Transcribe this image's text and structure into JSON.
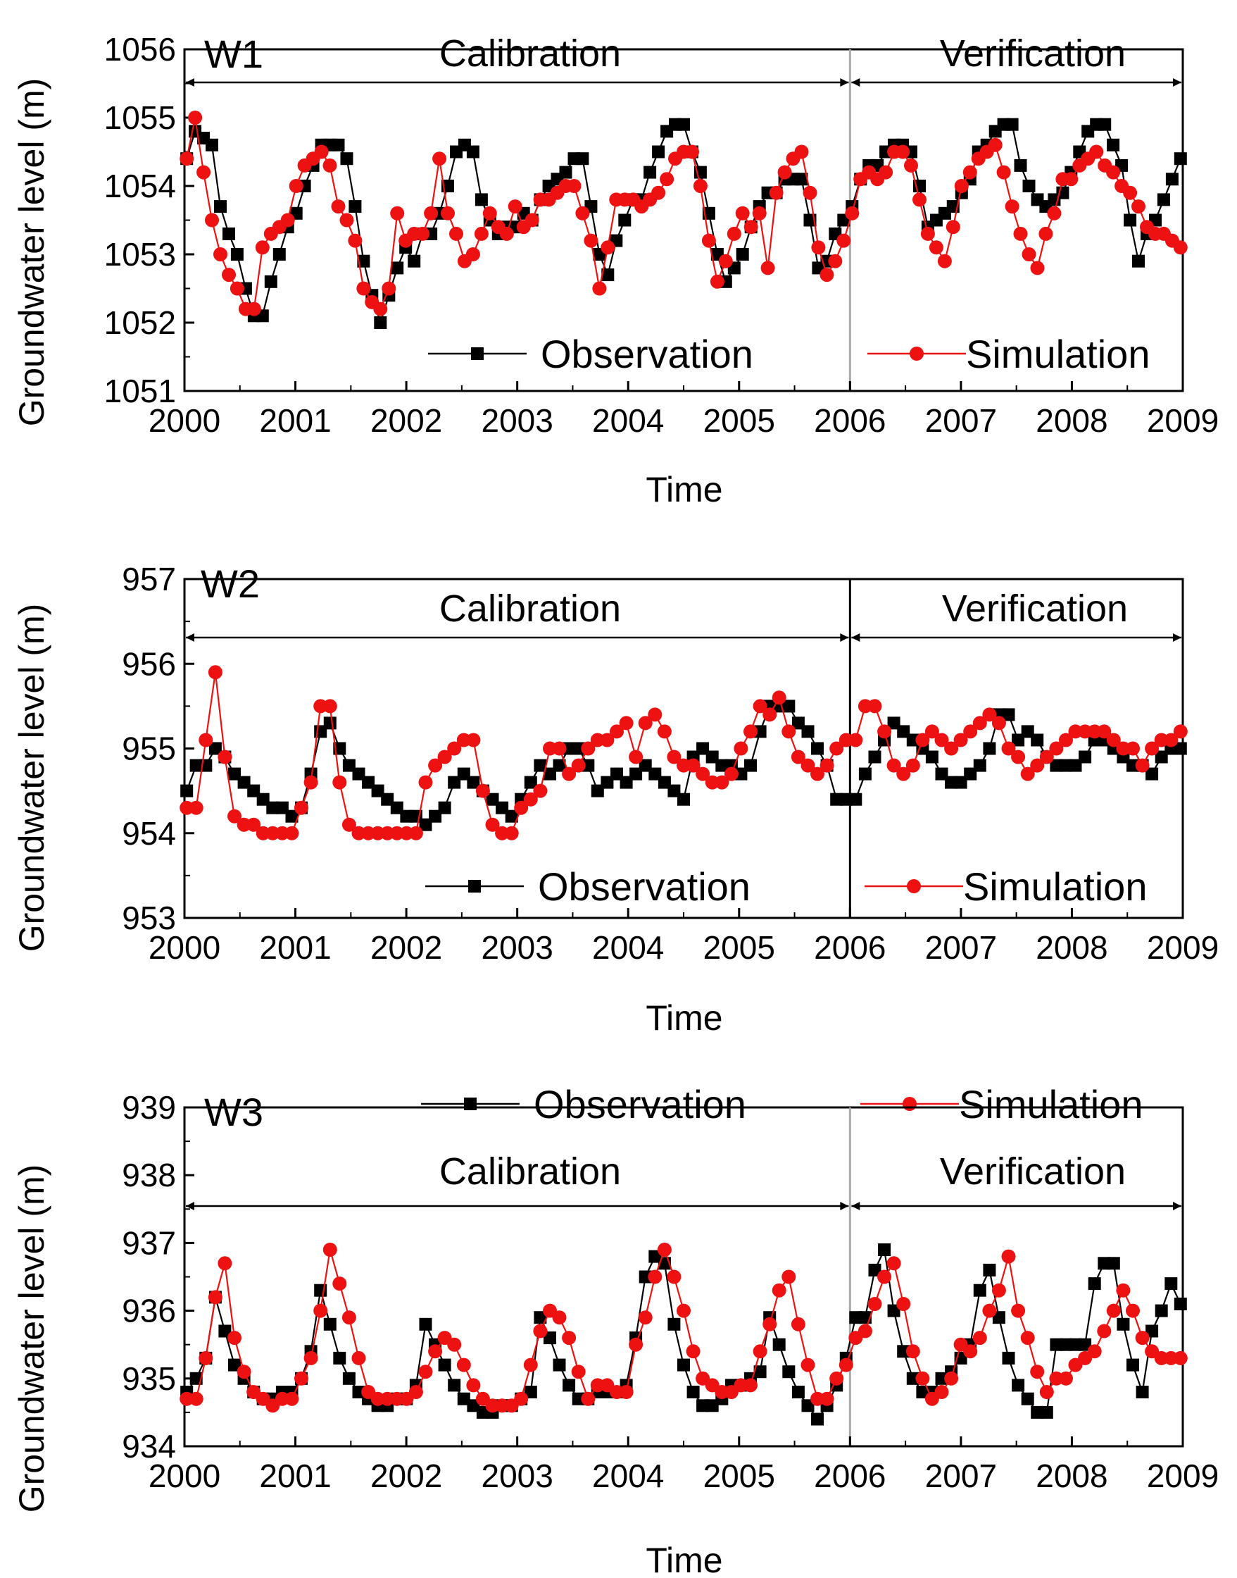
{
  "chart_data": [
    {
      "type": "line",
      "panel_label": "W1",
      "xlabel": "Time",
      "ylabel": "Groundwater level (m)",
      "xlim": [
        2000,
        2009
      ],
      "ylim": [
        1051,
        1056
      ],
      "x_ticks": [
        "2000",
        "2001",
        "2002",
        "2003",
        "2004",
        "2005",
        "2006",
        "2007",
        "2008",
        "2009"
      ],
      "y_ticks": [
        "1051",
        "1052",
        "1053",
        "1054",
        "1055",
        "1056"
      ],
      "periods": [
        {
          "label": "Calibration",
          "start": 2000,
          "end": 2006
        },
        {
          "label": "Verification",
          "start": 2006,
          "end": 2009
        }
      ],
      "divider_x": 2006,
      "divider_color": "#aaaaaa",
      "legend_position": "bottom",
      "series": [
        {
          "name": "Observation",
          "color": "#000000",
          "marker": "square",
          "values": [
            1054.4,
            1054.8,
            1054.7,
            1054.6,
            1053.7,
            1053.3,
            1053.0,
            1052.5,
            1052.1,
            1052.1,
            1052.6,
            1053.0,
            1053.4,
            1053.6,
            1054.0,
            1054.3,
            1054.6,
            1054.6,
            1054.6,
            1054.4,
            1053.7,
            1052.9,
            1052.4,
            1052.0,
            1052.4,
            1052.8,
            1053.1,
            1052.9,
            1053.3,
            1053.3,
            1053.6,
            1054.0,
            1054.5,
            1054.6,
            1054.5,
            1053.8,
            1053.5,
            1053.3,
            1053.4,
            1053.4,
            1053.6,
            1053.5,
            1053.8,
            1054.0,
            1054.1,
            1054.2,
            1054.4,
            1054.4,
            1053.7,
            1053.0,
            1052.7,
            1053.2,
            1053.5,
            1053.8,
            1053.8,
            1054.2,
            1054.5,
            1054.8,
            1054.9,
            1054.9,
            1054.5,
            1054.2,
            1053.6,
            1053.0,
            1052.6,
            1052.8,
            1053.0,
            1053.4,
            1053.7,
            1053.9,
            1053.9,
            1054.1,
            1054.1,
            1054.1,
            1053.5,
            1052.8,
            1052.9,
            1053.3,
            1053.5,
            1053.7,
            1054.1,
            1054.3,
            1054.3,
            1054.5,
            1054.6,
            1054.6,
            1054.5,
            1054.0,
            1053.4,
            1053.5,
            1053.6,
            1053.7,
            1053.9,
            1054.1,
            1054.5,
            1054.6,
            1054.8,
            1054.9,
            1054.9,
            1054.3,
            1054.0,
            1053.8,
            1053.7,
            1053.8,
            1053.9,
            1054.2,
            1054.5,
            1054.8,
            1054.9,
            1054.9,
            1054.6,
            1054.3,
            1053.5,
            1052.9,
            1053.3,
            1053.5,
            1053.8,
            1054.1,
            1054.4
          ]
        },
        {
          "name": "Simulation",
          "color": "#ee1111",
          "marker": "circle",
          "values": [
            1054.4,
            1055.0,
            1054.2,
            1053.5,
            1053.0,
            1052.7,
            1052.5,
            1052.2,
            1052.2,
            1053.1,
            1053.3,
            1053.4,
            1053.5,
            1054.0,
            1054.3,
            1054.4,
            1054.5,
            1054.3,
            1053.7,
            1053.5,
            1053.2,
            1052.5,
            1052.3,
            1052.2,
            1052.5,
            1053.6,
            1053.2,
            1053.3,
            1053.3,
            1053.6,
            1054.4,
            1053.6,
            1053.3,
            1052.9,
            1053.0,
            1053.3,
            1053.6,
            1053.4,
            1053.3,
            1053.7,
            1053.4,
            1053.5,
            1053.8,
            1053.8,
            1053.9,
            1054.0,
            1054.0,
            1053.6,
            1053.2,
            1052.5,
            1053.1,
            1053.8,
            1053.8,
            1053.8,
            1053.7,
            1053.8,
            1053.9,
            1054.1,
            1054.4,
            1054.5,
            1054.5,
            1054.0,
            1053.2,
            1052.6,
            1052.9,
            1053.3,
            1053.6,
            1053.4,
            1053.6,
            1052.8,
            1053.9,
            1054.2,
            1054.4,
            1054.5,
            1053.9,
            1053.1,
            1052.7,
            1052.9,
            1053.2,
            1053.6,
            1054.1,
            1054.2,
            1054.1,
            1054.2,
            1054.5,
            1054.5,
            1054.3,
            1053.8,
            1053.3,
            1053.1,
            1052.9,
            1053.4,
            1054.0,
            1054.2,
            1054.4,
            1054.5,
            1054.6,
            1054.2,
            1053.7,
            1053.3,
            1053.0,
            1052.8,
            1053.3,
            1053.6,
            1054.1,
            1054.1,
            1054.3,
            1054.4,
            1054.5,
            1054.3,
            1054.2,
            1054.0,
            1053.9,
            1053.7,
            1053.4,
            1053.3,
            1053.3,
            1053.2,
            1053.1
          ]
        }
      ]
    },
    {
      "type": "line",
      "panel_label": "W2",
      "xlabel": "Time",
      "ylabel": "Groundwater level (m)",
      "xlim": [
        2000,
        2009
      ],
      "ylim": [
        953,
        957
      ],
      "x_ticks": [
        "2000",
        "2001",
        "2002",
        "2003",
        "2004",
        "2005",
        "2006",
        "2007",
        "2008",
        "2009"
      ],
      "y_ticks": [
        "953",
        "954",
        "955",
        "956",
        "957"
      ],
      "periods": [
        {
          "label": "Calibration",
          "start": 2000,
          "end": 2006
        },
        {
          "label": "Verification",
          "start": 2006,
          "end": 2009
        }
      ],
      "divider_x": 2006,
      "divider_color": "#000000",
      "legend_position": "bottom",
      "series": [
        {
          "name": "Observation",
          "color": "#000000",
          "marker": "square",
          "values": [
            954.5,
            954.8,
            954.8,
            955.0,
            954.9,
            954.7,
            954.6,
            954.5,
            954.4,
            954.3,
            954.3,
            954.2,
            954.3,
            954.7,
            955.2,
            955.3,
            955.0,
            954.8,
            954.7,
            954.6,
            954.5,
            954.4,
            954.3,
            954.2,
            954.2,
            954.1,
            954.2,
            954.3,
            954.6,
            954.7,
            954.6,
            954.5,
            954.4,
            954.3,
            954.2,
            954.4,
            954.6,
            954.8,
            954.7,
            954.8,
            955.0,
            955.0,
            954.8,
            954.5,
            954.6,
            954.7,
            954.6,
            954.7,
            954.8,
            954.7,
            954.6,
            954.5,
            954.4,
            954.9,
            955.0,
            954.9,
            954.8,
            954.8,
            954.7,
            954.8,
            955.2,
            955.5,
            955.5,
            955.5,
            955.3,
            955.2,
            955.0,
            954.8,
            954.4,
            954.4,
            954.4,
            954.7,
            954.9,
            955.1,
            955.3,
            955.2,
            955.1,
            955.0,
            954.9,
            954.7,
            954.6,
            954.6,
            954.7,
            954.8,
            955.0,
            955.4,
            955.4,
            955.1,
            955.2,
            955.1,
            954.9,
            954.8,
            954.8,
            954.8,
            954.9,
            955.1,
            955.1,
            955.0,
            954.9,
            954.8,
            954.8,
            954.7,
            954.9,
            955.0,
            955.0
          ]
        },
        {
          "name": "Simulation",
          "color": "#ee1111",
          "marker": "circle",
          "values": [
            954.3,
            954.3,
            955.1,
            955.9,
            954.9,
            954.2,
            954.1,
            954.1,
            954.0,
            954.0,
            954.0,
            954.0,
            954.3,
            954.6,
            955.5,
            955.5,
            954.6,
            954.1,
            954.0,
            954.0,
            954.0,
            954.0,
            954.0,
            954.0,
            954.0,
            954.6,
            954.8,
            954.9,
            955.0,
            955.1,
            955.1,
            954.5,
            954.1,
            954.0,
            954.0,
            954.3,
            954.4,
            954.5,
            955.0,
            955.0,
            954.7,
            954.8,
            955.0,
            955.1,
            955.1,
            955.2,
            955.3,
            954.9,
            955.3,
            955.4,
            955.2,
            954.9,
            954.8,
            954.8,
            954.7,
            954.6,
            954.6,
            954.7,
            955.0,
            955.2,
            955.5,
            955.4,
            955.6,
            955.2,
            954.9,
            954.8,
            954.7,
            954.8,
            955.0,
            955.1,
            955.1,
            955.5,
            955.5,
            955.2,
            954.8,
            954.7,
            954.8,
            955.1,
            955.2,
            955.1,
            955.0,
            955.1,
            955.2,
            955.3,
            955.4,
            955.3,
            955.0,
            954.9,
            954.7,
            954.8,
            954.9,
            955.0,
            955.1,
            955.2,
            955.2,
            955.2,
            955.2,
            955.1,
            955.0,
            955.0,
            954.8,
            955.0,
            955.1,
            955.1,
            955.2
          ]
        }
      ]
    },
    {
      "type": "line",
      "panel_label": "W3",
      "xlabel": "Time",
      "ylabel": "Groundwater level (m)",
      "xlim": [
        2000,
        2009
      ],
      "ylim": [
        934,
        939
      ],
      "x_ticks": [
        "2000",
        "2001",
        "2002",
        "2003",
        "2004",
        "2005",
        "2006",
        "2007",
        "2008",
        "2009"
      ],
      "y_ticks": [
        "934",
        "935",
        "936",
        "937",
        "938",
        "939"
      ],
      "periods": [
        {
          "label": "Calibration",
          "start": 2000,
          "end": 2006
        },
        {
          "label": "Verification",
          "start": 2006,
          "end": 2009
        }
      ],
      "divider_x": 2006,
      "divider_color": "#aaaaaa",
      "legend_position": "top",
      "series": [
        {
          "name": "Observation",
          "color": "#000000",
          "marker": "square",
          "values": [
            934.8,
            935.0,
            935.3,
            936.2,
            935.7,
            935.2,
            935.0,
            934.8,
            934.7,
            934.7,
            934.8,
            934.8,
            935.0,
            935.4,
            936.3,
            935.8,
            935.3,
            935.0,
            934.8,
            934.7,
            934.6,
            934.6,
            934.7,
            934.7,
            934.9,
            935.8,
            935.5,
            935.2,
            934.9,
            934.7,
            934.6,
            934.5,
            934.5,
            934.6,
            934.6,
            934.7,
            934.8,
            935.9,
            935.6,
            935.2,
            934.9,
            934.7,
            934.7,
            934.8,
            934.8,
            934.8,
            934.9,
            935.6,
            936.5,
            936.8,
            936.7,
            935.8,
            935.2,
            934.8,
            934.6,
            934.6,
            934.7,
            934.9,
            934.9,
            935.0,
            935.1,
            935.9,
            935.5,
            935.1,
            934.8,
            934.6,
            934.4,
            934.6,
            934.9,
            935.3,
            935.9,
            935.9,
            936.6,
            936.9,
            936.0,
            935.4,
            935.0,
            934.8,
            934.8,
            935.0,
            935.1,
            935.3,
            935.5,
            936.3,
            936.6,
            935.9,
            935.3,
            934.9,
            934.7,
            934.5,
            934.5,
            935.5,
            935.5,
            935.5,
            935.5,
            936.4,
            936.7,
            936.7,
            935.8,
            935.2,
            934.8,
            935.7,
            936.0,
            936.4,
            936.1
          ]
        },
        {
          "name": "Simulation",
          "color": "#ee1111",
          "marker": "circle",
          "values": [
            934.7,
            934.7,
            935.3,
            936.2,
            936.7,
            935.6,
            935.1,
            934.8,
            934.7,
            934.6,
            934.7,
            934.7,
            935.0,
            935.3,
            936.0,
            936.9,
            936.4,
            935.9,
            935.3,
            934.8,
            934.7,
            934.7,
            934.7,
            934.7,
            934.8,
            935.1,
            935.4,
            935.6,
            935.5,
            935.2,
            934.9,
            934.7,
            934.6,
            934.6,
            934.6,
            934.7,
            935.2,
            935.7,
            936.0,
            935.9,
            935.6,
            935.1,
            934.7,
            934.9,
            934.9,
            934.8,
            934.8,
            935.5,
            935.9,
            936.5,
            936.9,
            936.5,
            936.0,
            935.4,
            935.0,
            934.9,
            934.8,
            934.8,
            934.9,
            934.9,
            935.4,
            935.8,
            936.3,
            936.5,
            935.8,
            935.2,
            934.7,
            934.7,
            935.0,
            935.2,
            935.6,
            935.7,
            936.1,
            936.5,
            936.7,
            936.1,
            935.4,
            935.0,
            934.7,
            934.8,
            935.0,
            935.5,
            935.4,
            935.6,
            936.0,
            936.3,
            936.8,
            936.0,
            935.6,
            935.1,
            934.8,
            935.0,
            935.0,
            935.2,
            935.3,
            935.4,
            935.7,
            936.0,
            936.3,
            936.0,
            935.6,
            935.4,
            935.3,
            935.3,
            935.3
          ]
        }
      ]
    }
  ]
}
